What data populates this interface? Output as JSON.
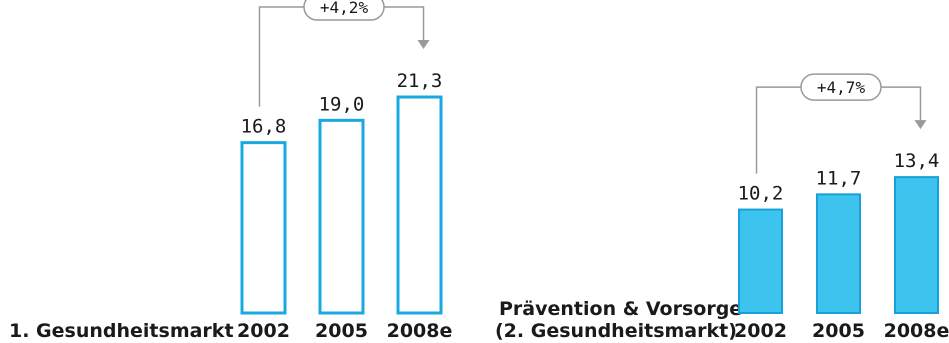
{
  "chart_data": [
    {
      "type": "bar",
      "category_label": "1. Gesundheitsmarkt",
      "categories": [
        "2002",
        "2005",
        "2008e"
      ],
      "values": [
        16.8,
        19.0,
        21.3
      ],
      "value_labels": [
        "16,8",
        "19,0",
        "21,3"
      ],
      "growth_label": "+4,2%",
      "bar_style": "outline",
      "bar_color": "#1aa8e0"
    },
    {
      "type": "bar",
      "category_label_lines": [
        "Prävention & Vorsorge",
        "(2. Gesundheitsmarkt)"
      ],
      "categories": [
        "2002",
        "2005",
        "2008e"
      ],
      "values": [
        10.2,
        11.7,
        13.4
      ],
      "value_labels": [
        "10,2",
        "11,7",
        "13,4"
      ],
      "growth_label": "+4,7%",
      "bar_style": "filled",
      "bar_color": "#3cc4ef"
    }
  ],
  "colors": {
    "bar_outline": "#1aa8e0",
    "bar_fill": "#3cc4ef",
    "connector": "#9a9a9a"
  }
}
